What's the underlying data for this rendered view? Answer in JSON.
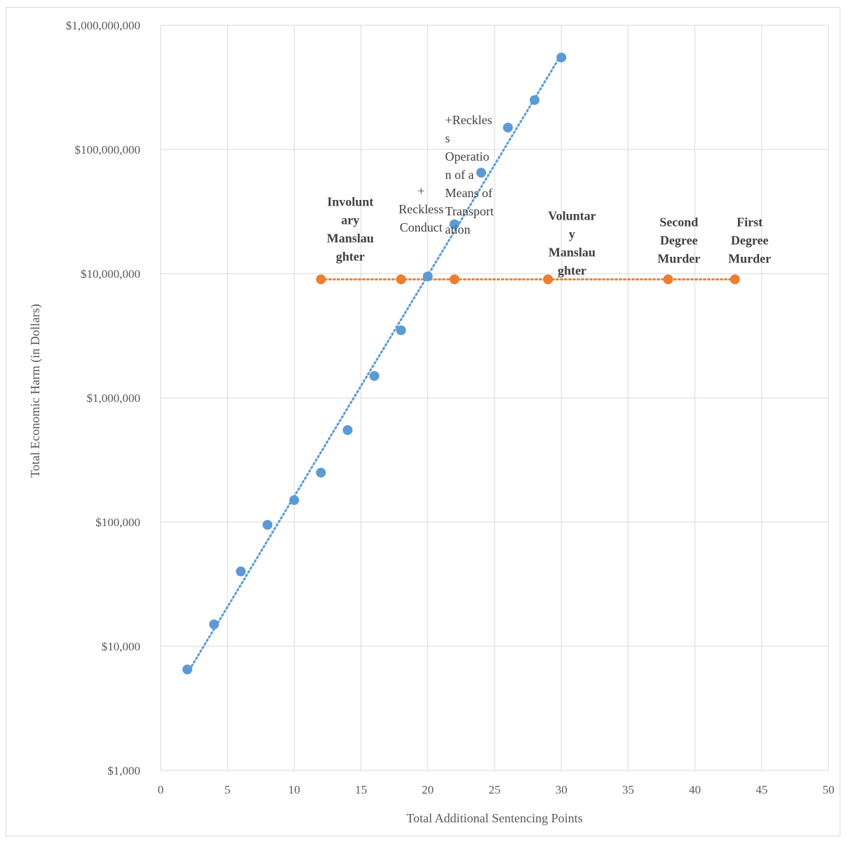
{
  "chart_data": {
    "type": "scatter",
    "title": "",
    "xlabel": "Total Additional Sentencing Points",
    "ylabel": "Total Economic Harm (in Dollars)",
    "xlim": [
      0,
      50
    ],
    "x_ticks": [
      0,
      5,
      10,
      15,
      20,
      25,
      30,
      35,
      40,
      45,
      50
    ],
    "ylim": [
      1000,
      1000000000
    ],
    "y_scale": "log",
    "y_ticks": [
      {
        "value": 1000,
        "label": "$1,000"
      },
      {
        "value": 10000,
        "label": "$10,000"
      },
      {
        "value": 100000,
        "label": "$100,000"
      },
      {
        "value": 1000000,
        "label": "$1,000,000"
      },
      {
        "value": 10000000,
        "label": "$10,000,000"
      },
      {
        "value": 100000000,
        "label": "$100,000,000"
      },
      {
        "value": 1000000000,
        "label": "$1,000,000,000"
      }
    ],
    "grid": true,
    "legend": "none",
    "series": [
      {
        "color": "#5b9bd5",
        "trendline": "exponential",
        "trendline_style": "dotted",
        "x": [
          2,
          4,
          6,
          8,
          10,
          12,
          14,
          16,
          18,
          20,
          22,
          24,
          26,
          28,
          30
        ],
        "y": [
          6500,
          15000,
          40000,
          95000,
          150000,
          250000,
          550000,
          1500000,
          3500000,
          9500000,
          25000000,
          65000000,
          150000000,
          250000000,
          550000000
        ]
      },
      {
        "color": "#ed7d31",
        "trendline": "linear",
        "trendline_style": "dotted",
        "x": [
          12,
          18,
          22,
          29,
          38,
          43
        ],
        "y": [
          9000000,
          9000000,
          9000000,
          9000000,
          9000000,
          9000000
        ]
      }
    ],
    "annotations": [
      {
        "x": 14.2,
        "y_top": 35000000,
        "bold": true,
        "lines": [
          "Involunt",
          "ary",
          "Manslau",
          "ghter"
        ]
      },
      {
        "x": 19.5,
        "y_top": 43000000,
        "bold": false,
        "lines": [
          "+",
          "Reckless",
          "Conduct"
        ]
      },
      {
        "x": 21.3,
        "y_top": 160000000,
        "bold": false,
        "anchor": "start",
        "lines": [
          "+Reckles",
          "s",
          "Operatio",
          "n of a",
          "Means of",
          "Transport",
          "ation"
        ]
      },
      {
        "x": 30.8,
        "y_top": 27000000,
        "bold": true,
        "lines": [
          "Voluntar",
          "y",
          "Manslau",
          "ghter"
        ]
      },
      {
        "x": 38.8,
        "y_top": 24000000,
        "bold": true,
        "lines": [
          "Second",
          "Degree",
          "Murder"
        ]
      },
      {
        "x": 44.1,
        "y_top": 24000000,
        "bold": true,
        "lines": [
          "First",
          "Degree",
          "Murder"
        ]
      }
    ]
  }
}
